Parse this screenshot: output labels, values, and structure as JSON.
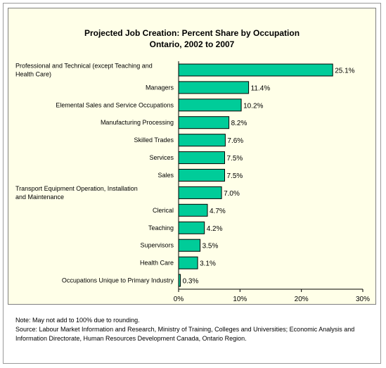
{
  "chart_data": {
    "type": "bar",
    "orientation": "horizontal",
    "title": "Projected Job Creation: Percent Share by Occupation",
    "subtitle": "Ontario, 2002 to 2007",
    "categories": [
      [
        "Professional and Technical (except Teaching and",
        "Health Care)"
      ],
      [
        "Managers"
      ],
      [
        "Elemental Sales and Service Occupations"
      ],
      [
        "Manufacturing Processing"
      ],
      [
        "Skilled Trades"
      ],
      [
        "Services"
      ],
      [
        "Sales"
      ],
      [
        "Transport Equipment Operation, Installation",
        "and Maintenance"
      ],
      [
        "Clerical"
      ],
      [
        "Teaching"
      ],
      [
        "Supervisors"
      ],
      [
        "Health Care"
      ],
      [
        "Occupations Unique to Primary Industry"
      ]
    ],
    "values": [
      25.1,
      11.4,
      10.2,
      8.2,
      7.6,
      7.5,
      7.5,
      7.0,
      4.7,
      4.2,
      3.5,
      3.1,
      0.3
    ],
    "value_labels": [
      "25.1%",
      "11.4%",
      "10.2%",
      "8.2%",
      "7.6%",
      "7.5%",
      "7.5%",
      "7.0%",
      "4.7%",
      "4.2%",
      "3.5%",
      "3.1%",
      "0.3%"
    ],
    "xlim": [
      0,
      30
    ],
    "xticks": [
      0,
      10,
      20,
      30
    ],
    "xtick_labels": [
      "0%",
      "10%",
      "20%",
      "30%"
    ],
    "bar_color": "#00cc99",
    "plot_background": "#ffffe8",
    "grid": false
  },
  "notes": {
    "note": "Note:  May not add to 100% due to rounding.",
    "source": "Source:  Labour Market Information and Research, Ministry of Training, Colleges and Universities; Economic Analysis and Information Directorate, Human Resources Development Canada, Ontario Region."
  }
}
